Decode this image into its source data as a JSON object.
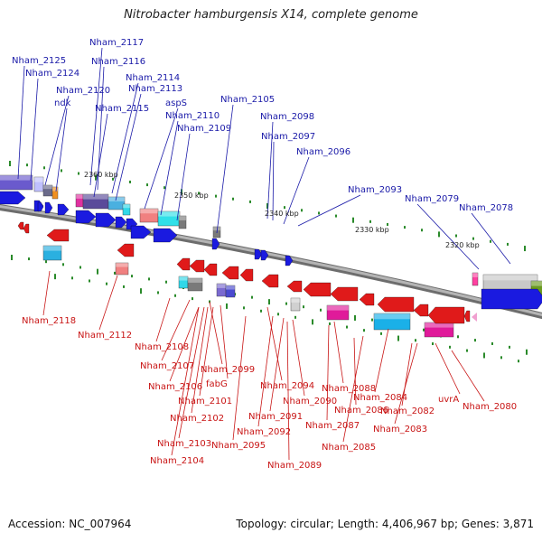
{
  "title": "Nitrobacter hamburgensis X14, complete genome",
  "footer": {
    "accession": "Accession: NC_007964",
    "summary": "Topology: circular; Length: 4,406,967 bp; Genes: 3,871"
  },
  "colors": {
    "top_label": "#1a1aa8",
    "bottom_label": "#c81414",
    "forward_gene": "#1a1ae0",
    "reverse_gene": "#e01a1a",
    "backbone": "#8c8c8c",
    "tick": "#2a8a2a"
  },
  "scale_labels": [
    "2360 kbp",
    "2350 kbp",
    "2340 kbp",
    "2330 kbp",
    "2320 kbp"
  ],
  "top_labels": [
    "Nham_2117",
    "Nham_2125",
    "Nham_2116",
    "Nham_2124",
    "Nham_2114",
    "Nham_2120",
    "Nham_2113",
    "ndk",
    "aspS",
    "Nham_2115",
    "Nham_2110",
    "Nham_2105",
    "Nham_2109",
    "Nham_2098",
    "Nham_2097",
    "Nham_2096",
    "Nham_2093",
    "Nham_2079",
    "Nham_2078"
  ],
  "bottom_labels": [
    "Nham_2118",
    "Nham_2112",
    "Nham_2108",
    "Nham_2107",
    "Nham_2099",
    "Nham_2106",
    "fabG",
    "Nham_2094",
    "Nham_2088",
    "Nham_2101",
    "Nham_2090",
    "Nham_2084",
    "uvrA",
    "Nham_2080",
    "Nham_2102",
    "Nham_2086",
    "Nham_2082",
    "Nham_2091",
    "Nham_2087",
    "Nham_2083",
    "Nham_2092",
    "Nham_2103",
    "Nham_2095",
    "Nham_2085",
    "Nham_2104",
    "Nham_2089"
  ]
}
